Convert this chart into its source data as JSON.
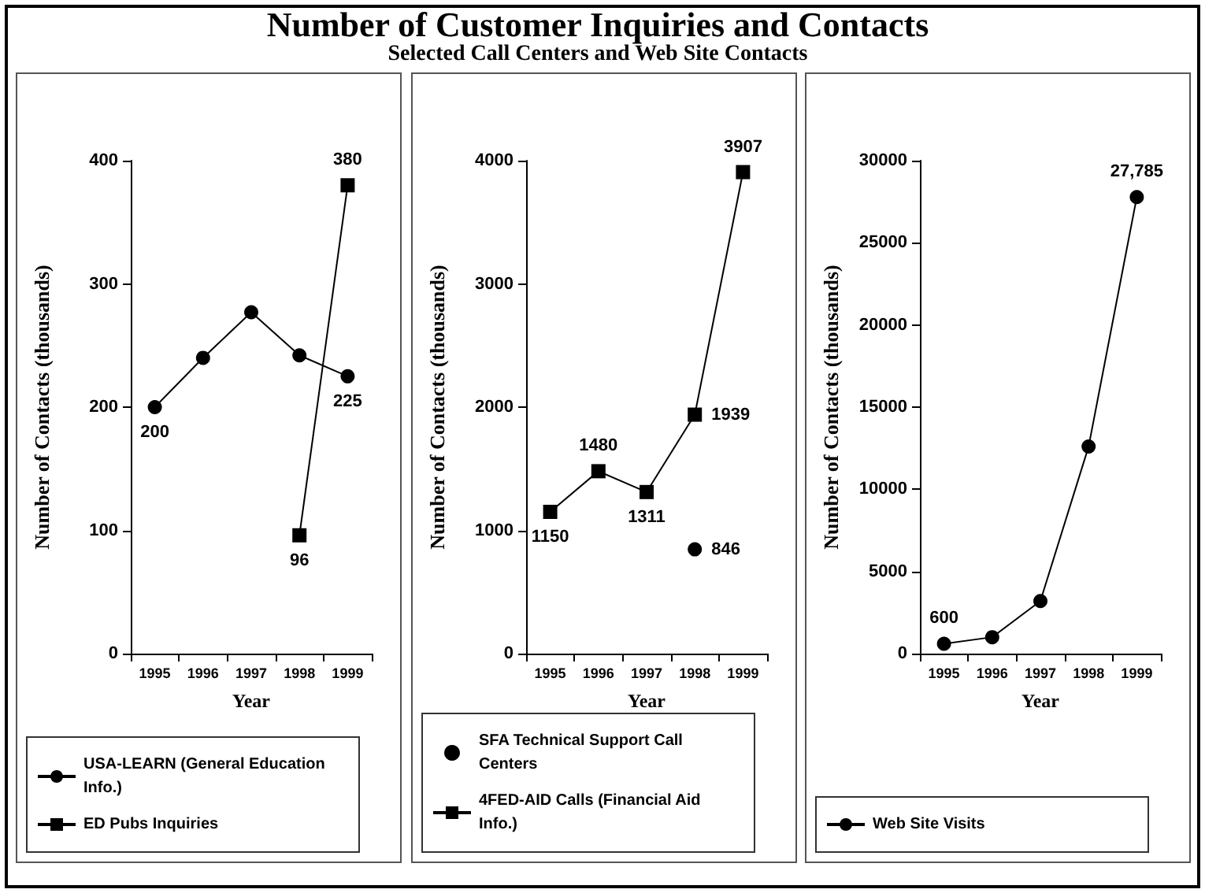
{
  "chart_data": [
    {
      "type": "other",
      "title": "Number of Customer Inquiries and Contacts",
      "subtitle": "Selected Call Centers and Web Site Contacts"
    },
    {
      "type": "line",
      "xlabel": "Year",
      "ylabel": "Number of Contacts (thousands)",
      "categories": [
        "1995",
        "1996",
        "1997",
        "1998",
        "1999"
      ],
      "ylim": [
        0,
        400
      ],
      "yticks": [
        0,
        100,
        200,
        300,
        400
      ],
      "grid": false,
      "legend": "bottom",
      "line_style": "solid",
      "series": [
        {
          "name": "USA-LEARN (General Education Info.)",
          "color": "#000000",
          "marker": "circle",
          "values": [
            200,
            240,
            277,
            242,
            225
          ],
          "value_labels": [
            "200",
            null,
            null,
            null,
            "225"
          ]
        },
        {
          "name": "ED Pubs Inquiries",
          "color": "#000000",
          "marker": "square",
          "values": [
            null,
            null,
            null,
            96,
            380
          ],
          "value_labels": [
            null,
            null,
            null,
            "96",
            "380"
          ]
        }
      ]
    },
    {
      "type": "line",
      "xlabel": "Year",
      "ylabel": "Number of Contacts (thousands)",
      "categories": [
        "1995",
        "1996",
        "1997",
        "1998",
        "1999"
      ],
      "ylim": [
        0,
        4000
      ],
      "yticks": [
        0,
        1000,
        2000,
        3000,
        4000
      ],
      "grid": false,
      "legend": "bottom",
      "line_style": "solid",
      "series": [
        {
          "name": "SFA Technical Support Call Centers",
          "type": "scatter",
          "color": "#000000",
          "marker": "circle",
          "values": [
            null,
            null,
            null,
            846,
            null
          ],
          "value_labels": [
            null,
            null,
            null,
            "846",
            null
          ]
        },
        {
          "name": "4FED-AID Calls (Financial Aid Info.)",
          "color": "#000000",
          "marker": "square",
          "values": [
            1150,
            1480,
            1311,
            1939,
            3907
          ],
          "value_labels": [
            "1150",
            "1480",
            "1311",
            "1939",
            "3907"
          ]
        }
      ]
    },
    {
      "type": "line",
      "xlabel": "Year",
      "ylabel": "Number of Contacts (thousands)",
      "categories": [
        "1995",
        "1996",
        "1997",
        "1998",
        "1999"
      ],
      "ylim": [
        0,
        30000
      ],
      "yticks": [
        0,
        5000,
        10000,
        15000,
        20000,
        25000,
        30000
      ],
      "grid": false,
      "legend": "bottom",
      "line_style": "solid",
      "series": [
        {
          "name": "Web Site Visits",
          "color": "#000000",
          "marker": "circle",
          "values": [
            600,
            1000,
            3200,
            12600,
            27785
          ],
          "value_labels": [
            "600",
            null,
            null,
            null,
            "27,785"
          ]
        }
      ]
    }
  ]
}
